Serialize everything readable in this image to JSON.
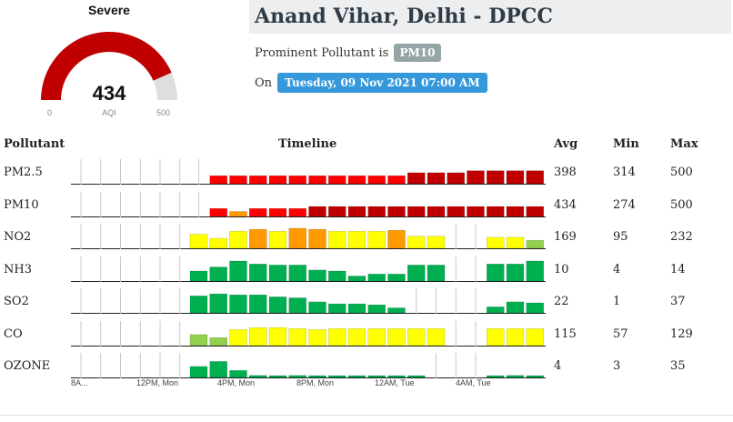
{
  "gauge": {
    "category": "Severe",
    "value": 434,
    "min": "0",
    "max": "500",
    "label": "AQI",
    "colors": {
      "fill": "#c00000",
      "rest": "#dedede"
    }
  },
  "station": {
    "name": "Anand Vihar, Delhi - DPCC"
  },
  "prominent": {
    "prefix": "Prominent Pollutant is",
    "pollutant": "PM10"
  },
  "date": {
    "prefix": "On",
    "value": "Tuesday, 09 Nov 2021 07:00 AM"
  },
  "table": {
    "headers": {
      "pollutant": "Pollutant",
      "timeline": "Timeline",
      "avg": "Avg",
      "min": "Min",
      "max": "Max"
    }
  },
  "time_axis": {
    "labels": [
      "8A...",
      "12PM, Mon",
      "4PM, Mon",
      "8PM, Mon",
      "12AM, Tue",
      "4AM, Tue"
    ]
  },
  "colors": {
    "good": "#00b050",
    "satisfactory": "#92d050",
    "moderate": "#ffff00",
    "poor": "#ff9900",
    "very_poor": "#ff0000",
    "severe": "#c00000"
  },
  "pollutants": [
    {
      "name": "PM2.5",
      "avg": "398",
      "min": "314",
      "max": "500",
      "bars": [
        null,
        null,
        null,
        null,
        null,
        null,
        [
          0.4,
          "very_poor"
        ],
        [
          0.4,
          "very_poor"
        ],
        [
          0.4,
          "very_poor"
        ],
        [
          0.4,
          "very_poor"
        ],
        [
          0.4,
          "very_poor"
        ],
        [
          0.4,
          "very_poor"
        ],
        [
          0.4,
          "very_poor"
        ],
        [
          0.4,
          "very_poor"
        ],
        [
          0.4,
          "very_poor"
        ],
        [
          0.4,
          "very_poor"
        ],
        [
          0.55,
          "severe"
        ],
        [
          0.55,
          "severe"
        ],
        [
          0.55,
          "severe"
        ],
        [
          0.65,
          "severe"
        ],
        [
          0.65,
          "severe"
        ],
        [
          0.65,
          "severe"
        ],
        [
          0.65,
          "severe"
        ],
        [
          0.65,
          "severe"
        ],
        [
          0.6,
          "severe"
        ]
      ]
    },
    {
      "name": "PM10",
      "avg": "434",
      "min": "274",
      "max": "500",
      "bars": [
        null,
        null,
        null,
        null,
        null,
        null,
        [
          0.4,
          "very_poor"
        ],
        [
          0.25,
          "poor"
        ],
        [
          0.4,
          "very_poor"
        ],
        [
          0.4,
          "very_poor"
        ],
        [
          0.4,
          "very_poor"
        ],
        [
          0.5,
          "severe"
        ],
        [
          0.5,
          "severe"
        ],
        [
          0.5,
          "severe"
        ],
        [
          0.5,
          "severe"
        ],
        [
          0.5,
          "severe"
        ],
        [
          0.5,
          "severe"
        ],
        [
          0.5,
          "severe"
        ],
        [
          0.5,
          "severe"
        ],
        [
          0.5,
          "severe"
        ],
        [
          0.5,
          "severe"
        ],
        [
          0.5,
          "severe"
        ],
        [
          0.5,
          "severe"
        ],
        [
          0.5,
          "severe"
        ],
        [
          0.5,
          "severe"
        ]
      ]
    },
    {
      "name": "NO2",
      "avg": "169",
      "min": "95",
      "max": "232",
      "bars": [
        null,
        null,
        null,
        null,
        null,
        [
          0.7,
          "moderate"
        ],
        [
          0.5,
          "moderate"
        ],
        [
          0.85,
          "moderate"
        ],
        [
          0.95,
          "poor"
        ],
        [
          0.85,
          "moderate"
        ],
        [
          1.0,
          "poor"
        ],
        [
          0.95,
          "poor"
        ],
        [
          0.85,
          "moderate"
        ],
        [
          0.85,
          "moderate"
        ],
        [
          0.85,
          "moderate"
        ],
        [
          0.9,
          "poor"
        ],
        [
          0.6,
          "moderate"
        ],
        [
          0.6,
          "moderate"
        ],
        null,
        null,
        [
          0.55,
          "moderate"
        ],
        [
          0.55,
          "moderate"
        ],
        [
          0.4,
          "satisfactory"
        ],
        [
          0.5,
          "moderate"
        ]
      ]
    },
    {
      "name": "NH3",
      "avg": "10",
      "min": "4",
      "max": "14",
      "bars": [
        null,
        null,
        null,
        null,
        null,
        [
          0.5,
          "good"
        ],
        [
          0.7,
          "good"
        ],
        [
          1.0,
          "good"
        ],
        [
          0.85,
          "good"
        ],
        [
          0.8,
          "good"
        ],
        [
          0.8,
          "good"
        ],
        [
          0.55,
          "good"
        ],
        [
          0.5,
          "good"
        ],
        [
          0.25,
          "good"
        ],
        [
          0.35,
          "good"
        ],
        [
          0.35,
          "good"
        ],
        [
          0.8,
          "good"
        ],
        [
          0.8,
          "good"
        ],
        null,
        null,
        [
          0.85,
          "good"
        ],
        [
          0.85,
          "good"
        ],
        [
          1.0,
          "good"
        ],
        [
          0.55,
          "good"
        ]
      ]
    },
    {
      "name": "SO2",
      "avg": "22",
      "min": "1",
      "max": "37",
      "bars": [
        null,
        null,
        null,
        null,
        null,
        [
          0.85,
          "good"
        ],
        [
          0.95,
          "good"
        ],
        [
          0.9,
          "good"
        ],
        [
          0.9,
          "good"
        ],
        [
          0.8,
          "good"
        ],
        [
          0.75,
          "good"
        ],
        [
          0.55,
          "good"
        ],
        [
          0.45,
          "good"
        ],
        [
          0.45,
          "good"
        ],
        [
          0.4,
          "good"
        ],
        [
          0.25,
          "good"
        ],
        null,
        null,
        null,
        null,
        [
          0.3,
          "good"
        ],
        [
          0.55,
          "good"
        ],
        [
          0.5,
          "good"
        ],
        [
          0.65,
          "good"
        ]
      ]
    },
    {
      "name": "CO",
      "avg": "115",
      "min": "57",
      "max": "129",
      "bars": [
        null,
        null,
        null,
        null,
        null,
        [
          0.55,
          "satisfactory"
        ],
        [
          0.4,
          "satisfactory"
        ],
        [
          0.8,
          "moderate"
        ],
        [
          0.9,
          "moderate"
        ],
        [
          0.9,
          "moderate"
        ],
        [
          0.85,
          "moderate"
        ],
        [
          0.8,
          "moderate"
        ],
        [
          0.85,
          "moderate"
        ],
        [
          0.85,
          "moderate"
        ],
        [
          0.85,
          "moderate"
        ],
        [
          0.85,
          "moderate"
        ],
        [
          0.85,
          "moderate"
        ],
        [
          0.85,
          "moderate"
        ],
        null,
        null,
        [
          0.85,
          "moderate"
        ],
        [
          0.85,
          "moderate"
        ],
        [
          0.85,
          "moderate"
        ],
        [
          0.85,
          "moderate"
        ]
      ]
    },
    {
      "name": "OZONE",
      "avg": "4",
      "min": "3",
      "max": "35",
      "bars": [
        null,
        null,
        null,
        null,
        null,
        [
          0.55,
          "good"
        ],
        [
          0.8,
          "good"
        ],
        [
          0.35,
          "good"
        ],
        [
          0.1,
          "good"
        ],
        [
          0.05,
          "good"
        ],
        [
          0.1,
          "good"
        ],
        [
          0.05,
          "good"
        ],
        [
          0.05,
          "good"
        ],
        [
          0.05,
          "good"
        ],
        [
          0.05,
          "good"
        ],
        [
          0.05,
          "good"
        ],
        [
          0.05,
          "good"
        ],
        null,
        null,
        null,
        [
          0.05,
          "good"
        ],
        [
          0.1,
          "good"
        ],
        [
          0.05,
          "good"
        ],
        [
          0.05,
          "good"
        ]
      ]
    }
  ]
}
